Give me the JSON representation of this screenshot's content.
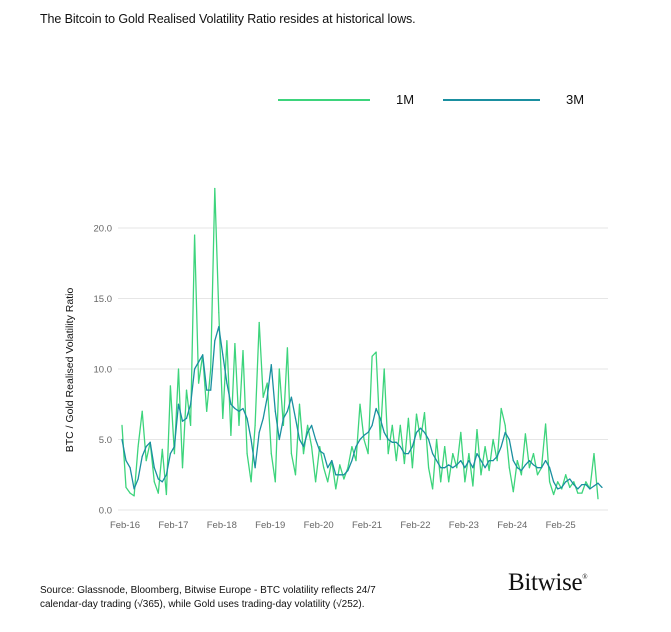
{
  "chart_data": {
    "type": "line",
    "title": "The Bitcoin to Gold Realised Volatility Ratio resides at historical lows.",
    "ylabel": "BTC / Gold Realised Volatility Ratio",
    "xlabel": "",
    "ylim": [
      0,
      23
    ],
    "y_ticks": [
      "0.0",
      "5.0",
      "10.0",
      "15.0",
      "20.0"
    ],
    "x_ticks": [
      "Feb-16",
      "Feb-17",
      "Feb-18",
      "Feb-19",
      "Feb-20",
      "Feb-21",
      "Feb-22",
      "Feb-23",
      "Feb-24",
      "Feb-25"
    ],
    "x_start": "2016-02",
    "x_frequency": "monthly",
    "grid": "horizontal",
    "legend_position": "top-right",
    "series": [
      {
        "name": "1M",
        "color": "#3dd47c",
        "values": [
          6.0,
          1.6,
          1.2,
          1.0,
          4.5,
          7.0,
          3.5,
          4.8,
          2.0,
          1.2,
          4.3,
          1.1,
          8.8,
          4.0,
          10.0,
          3.0,
          8.5,
          6.0,
          19.5,
          9.0,
          11.0,
          7.0,
          10.0,
          22.8,
          14.0,
          6.5,
          12.0,
          5.3,
          11.8,
          6.0,
          11.3,
          4.0,
          2.0,
          6.0,
          13.3,
          8.0,
          9.0,
          4.0,
          2.0,
          10.0,
          6.0,
          11.5,
          4.0,
          2.5,
          7.5,
          4.0,
          6.0,
          4.5,
          2.0,
          4.5,
          3.0,
          2.0,
          3.5,
          1.5,
          3.2,
          2.2,
          3.0,
          4.5,
          3.5,
          7.5,
          5.0,
          4.0,
          10.9,
          11.2,
          5.0,
          10.0,
          4.0,
          6.0,
          3.5,
          6.0,
          3.3,
          6.5,
          3.0,
          6.8,
          5.0,
          6.9,
          3.0,
          1.5,
          5.0,
          2.0,
          4.5,
          2.0,
          4.0,
          3.0,
          5.5,
          2.0,
          4.0,
          1.7,
          5.7,
          2.5,
          4.5,
          2.8,
          5.0,
          3.5,
          7.2,
          6.0,
          3.0,
          1.3,
          3.5,
          2.5,
          5.4,
          3.0,
          4.0,
          2.5,
          3.0,
          6.1,
          2.0,
          1.1,
          2.0,
          1.5,
          2.5,
          1.6,
          2.0,
          1.2,
          1.2,
          2.0,
          1.5,
          4.0,
          0.8
        ]
      },
      {
        "name": "3M",
        "color": "#1a8fa0",
        "values": [
          5.0,
          3.5,
          3.0,
          1.5,
          2.2,
          3.8,
          4.5,
          4.8,
          3.0,
          2.2,
          2.0,
          2.5,
          4.0,
          4.5,
          7.5,
          6.3,
          6.5,
          7.5,
          10.0,
          10.5,
          11.0,
          8.5,
          8.5,
          12.0,
          13.0,
          11.0,
          9.0,
          7.5,
          7.2,
          7.0,
          7.2,
          6.5,
          5.0,
          3.0,
          5.5,
          6.5,
          8.0,
          10.3,
          7.0,
          5.0,
          6.5,
          7.0,
          8.0,
          6.5,
          5.0,
          4.5,
          5.5,
          6.0,
          5.0,
          4.2,
          4.0,
          3.0,
          3.5,
          2.5,
          2.5,
          2.5,
          2.8,
          3.5,
          4.5,
          5.0,
          5.3,
          5.5,
          6.0,
          7.2,
          6.5,
          5.5,
          5.0,
          4.8,
          4.8,
          4.5,
          4.0,
          4.0,
          4.5,
          5.5,
          5.8,
          5.5,
          5.0,
          4.0,
          3.5,
          3.0,
          3.0,
          3.2,
          3.0,
          3.2,
          3.5,
          3.0,
          3.5,
          3.0,
          4.0,
          3.5,
          3.0,
          3.5,
          3.5,
          3.8,
          4.5,
          5.5,
          5.0,
          3.5,
          3.0,
          2.8,
          3.2,
          3.5,
          3.2,
          3.0,
          3.0,
          3.5,
          3.0,
          2.0,
          1.5,
          1.6,
          2.0,
          2.2,
          1.8,
          1.5,
          1.8,
          1.8,
          1.5,
          1.7,
          1.9,
          1.6
        ]
      }
    ]
  },
  "source": {
    "line1": "Source: Glassnode, Bloomberg, Bitwise Europe - BTC volatility reflects 24/7",
    "line2": "calendar-day trading (√365), while Gold uses trading-day volatility (√252)."
  },
  "logo": {
    "text": "Bitwise",
    "mark": "®"
  }
}
